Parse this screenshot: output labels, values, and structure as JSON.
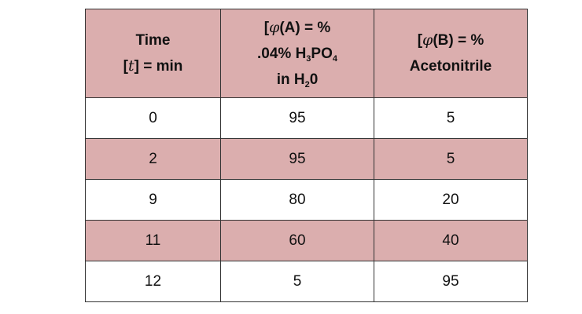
{
  "header": {
    "col1": {
      "line1": "Time",
      "line2_pre": "[",
      "line2_sym": "t",
      "line2_post": "] = min"
    },
    "col2": {
      "line1_pre": "[",
      "line1_sym": "φ",
      "line1_post": "(A) = %",
      "line2_pre": ".04% H",
      "line2_sub1": "3",
      "line2_mid": "PO",
      "line2_sub2": "4",
      "line3_pre": "in H",
      "line3_sub": "2",
      "line3_post": "0"
    },
    "col3": {
      "line1_pre": "[",
      "line1_sym": "φ",
      "line1_post": "(B) = %",
      "line2": "Acetonitrile"
    }
  },
  "rows": [
    {
      "time": "0",
      "a": "95",
      "b": "5"
    },
    {
      "time": "2",
      "a": "95",
      "b": "5"
    },
    {
      "time": "9",
      "a": "80",
      "b": "20"
    },
    {
      "time": "11",
      "a": "60",
      "b": "40"
    },
    {
      "time": "12",
      "a": "5",
      "b": "95"
    }
  ],
  "colors": {
    "shaded_row": "#dbaeae",
    "border": "#333333"
  }
}
